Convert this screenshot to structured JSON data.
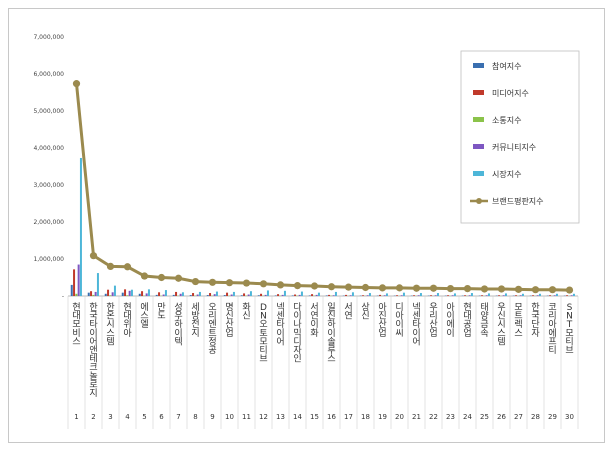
{
  "chart_data": {
    "type": "bar",
    "title": "",
    "xlabel": "",
    "ylabel": "",
    "ylim": [
      0,
      7000000
    ],
    "yticks": [
      0,
      1000000,
      2000000,
      3000000,
      4000000,
      5000000,
      6000000,
      7000000
    ],
    "ytick_labels": [
      "-",
      "1,000,000",
      "2,000,000",
      "3,000,000",
      "4,000,000",
      "5,000,000",
      "6,000,000",
      "7,000,000"
    ],
    "grid": false,
    "legend_position": "right",
    "indices": [
      "1",
      "2",
      "3",
      "4",
      "5",
      "6",
      "7",
      "8",
      "9",
      "10",
      "11",
      "12",
      "13",
      "14",
      "15",
      "16",
      "17",
      "18",
      "19",
      "20",
      "21",
      "22",
      "23",
      "24",
      "25",
      "26",
      "27",
      "28",
      "29",
      "30"
    ],
    "categories": [
      "현대모비스",
      "한국타이어앤테크놀로지",
      "한온시스템",
      "현대위아",
      "에스엘",
      "만도",
      "성우하이텍",
      "세방전지",
      "오리엔트정공",
      "명신산업",
      "화신",
      "DN오토모티브",
      "넥센타이어",
      "다이나믹디자인",
      "서연이화",
      "일진하이솔루스",
      "서연",
      "상신",
      "아진산업",
      "디아이씨",
      "넥센타이어",
      "우리산업",
      "아이에이",
      "현대공업",
      "태양금속",
      "우신시스템",
      "모트렉스",
      "한국단자",
      "코리아에프티",
      "SNT모티브"
    ],
    "series": [
      {
        "name": "참여지수",
        "color": "#3a6fb0",
        "values": [
          300000,
          90000,
          60000,
          90000,
          60000,
          30000,
          30000,
          25000,
          25000,
          25000,
          20000,
          20000,
          15000,
          15000,
          15000,
          15000,
          10000,
          10000,
          10000,
          10000,
          10000,
          10000,
          10000,
          10000,
          10000,
          10000,
          10000,
          10000,
          10000,
          10000
        ]
      },
      {
        "name": "미디어지수",
        "color": "#c0392b",
        "values": [
          720000,
          130000,
          170000,
          180000,
          130000,
          100000,
          110000,
          80000,
          80000,
          90000,
          70000,
          60000,
          50000,
          40000,
          50000,
          30000,
          30000,
          20000,
          30000,
          20000,
          20000,
          20000,
          20000,
          20000,
          20000,
          20000,
          20000,
          20000,
          20000,
          20000
        ]
      },
      {
        "name": "소통지수",
        "color": "#8bc34a",
        "values": [
          60000,
          30000,
          20000,
          20000,
          10000,
          10000,
          10000,
          10000,
          10000,
          10000,
          10000,
          10000,
          10000,
          10000,
          10000,
          10000,
          5000,
          5000,
          5000,
          5000,
          5000,
          5000,
          5000,
          5000,
          5000,
          5000,
          5000,
          5000,
          5000,
          5000
        ]
      },
      {
        "name": "커뮤니티지수",
        "color": "#7e57c2",
        "values": [
          850000,
          110000,
          100000,
          140000,
          70000,
          40000,
          60000,
          40000,
          50000,
          40000,
          40000,
          30000,
          30000,
          30000,
          30000,
          20000,
          20000,
          20000,
          20000,
          20000,
          20000,
          20000,
          20000,
          20000,
          20000,
          20000,
          20000,
          20000,
          20000,
          20000
        ]
      },
      {
        "name": "시장지수",
        "color": "#4db6d8",
        "values": [
          3730000,
          620000,
          280000,
          170000,
          180000,
          160000,
          100000,
          110000,
          120000,
          110000,
          130000,
          150000,
          140000,
          120000,
          90000,
          110000,
          100000,
          80000,
          70000,
          90000,
          80000,
          80000,
          70000,
          80000,
          70000,
          70000,
          60000,
          60000,
          60000,
          60000
        ]
      },
      {
        "name": "브랜드평판지수",
        "color": "#9b8a4e",
        "values": [
          5740000,
          1090000,
          800000,
          790000,
          540000,
          500000,
          480000,
          390000,
          370000,
          360000,
          350000,
          330000,
          300000,
          280000,
          270000,
          250000,
          240000,
          230000,
          220000,
          220000,
          210000,
          210000,
          200000,
          200000,
          190000,
          190000,
          180000,
          170000,
          170000,
          160000
        ]
      }
    ]
  }
}
